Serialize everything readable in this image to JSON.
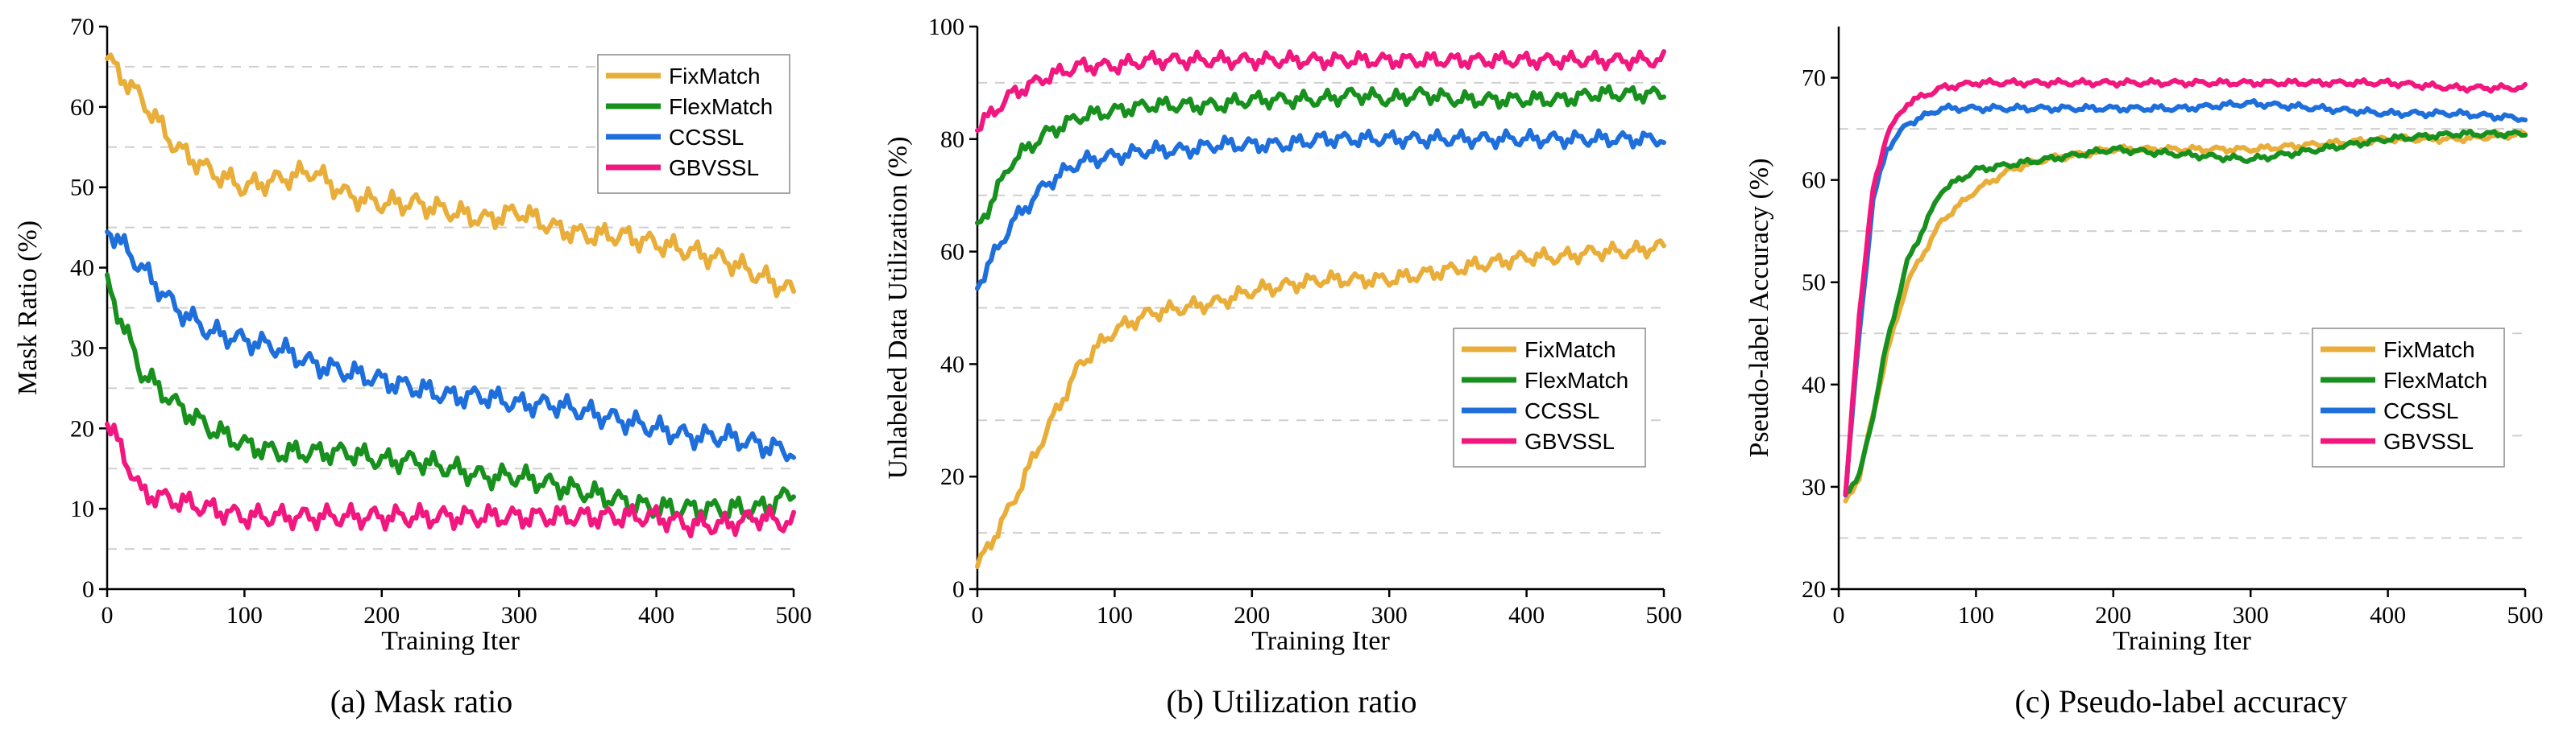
{
  "colors": {
    "FixMatch": "#E9AE3A",
    "FlexMatch": "#17901E",
    "CCSSL": "#1E6FDC",
    "GBVSSL": "#F2177F"
  },
  "chart_data": [
    {
      "type": "line",
      "caption": "(a) Mask ratio",
      "xlabel": "Training Iter",
      "ylabel": "Mask Ratio (%)",
      "xlim": [
        0,
        500
      ],
      "ylim": [
        0,
        70
      ],
      "xticks": [
        0,
        100,
        200,
        300,
        400,
        500
      ],
      "yticks": [
        0,
        10,
        20,
        30,
        40,
        50,
        60,
        70
      ],
      "grid_y": [
        5,
        15,
        25,
        35,
        45,
        55,
        65
      ],
      "legend_position": "top-right",
      "x": [
        0,
        25,
        50,
        75,
        100,
        125,
        150,
        175,
        200,
        225,
        250,
        275,
        300,
        325,
        350,
        375,
        400,
        425,
        450,
        475,
        500
      ],
      "series": [
        {
          "name": "FixMatch",
          "values": [
            66,
            61,
            55,
            52,
            50,
            51,
            52,
            49,
            48,
            48,
            47,
            46,
            47,
            45,
            44,
            44,
            43,
            42,
            41,
            39,
            37
          ]
        },
        {
          "name": "FlexMatch",
          "values": [
            38,
            27,
            23,
            20,
            18,
            17,
            17,
            17,
            16,
            16,
            15,
            14,
            14,
            13,
            12,
            11,
            10,
            10,
            10,
            10,
            12
          ]
        },
        {
          "name": "CCSSL",
          "values": [
            45,
            40,
            35,
            32,
            31,
            30,
            28,
            27,
            26,
            25,
            24,
            24,
            23,
            23,
            22,
            21,
            20,
            19,
            19,
            18,
            17
          ]
        },
        {
          "name": "GBVSSL",
          "values": [
            21,
            12,
            11,
            10,
            9,
            9,
            9,
            9,
            9,
            9,
            9,
            9,
            9,
            9,
            9,
            9,
            9,
            8,
            8,
            9,
            8
          ]
        }
      ]
    },
    {
      "type": "line",
      "caption": "(b) Utilization ratio",
      "xlabel": "Training Iter",
      "ylabel": "Unlabeled Data Utilization (%)",
      "xlim": [
        0,
        500
      ],
      "ylim": [
        0,
        100
      ],
      "xticks": [
        0,
        100,
        200,
        300,
        400,
        500
      ],
      "yticks": [
        0,
        20,
        40,
        60,
        80,
        100
      ],
      "grid_y": [
        10,
        30,
        50,
        70,
        90
      ],
      "legend_position": "center-right",
      "x": [
        0,
        25,
        50,
        75,
        100,
        125,
        150,
        175,
        200,
        225,
        250,
        275,
        300,
        325,
        350,
        375,
        400,
        425,
        450,
        475,
        500
      ],
      "series": [
        {
          "name": "FixMatch",
          "values": [
            4,
            15,
            28,
            40,
            46,
            49,
            50,
            51,
            53,
            54,
            55,
            55,
            55,
            56,
            57,
            58,
            59,
            59,
            60,
            60,
            61
          ]
        },
        {
          "name": "FlexMatch",
          "values": [
            64,
            76,
            81,
            84,
            85,
            86,
            86,
            86,
            87,
            87,
            87,
            88,
            87,
            88,
            87,
            87,
            87,
            87,
            88,
            88,
            88
          ]
        },
        {
          "name": "CCSSL",
          "values": [
            54,
            65,
            72,
            76,
            77,
            78,
            78,
            79,
            79,
            79,
            80,
            80,
            80,
            80,
            80,
            80,
            80,
            80,
            80,
            80,
            80
          ]
        },
        {
          "name": "GBVSSL",
          "values": [
            82,
            88,
            91,
            93,
            93,
            94,
            94,
            94,
            94,
            94,
            94,
            94,
            94,
            94,
            94,
            94,
            94,
            94,
            94,
            94,
            94
          ]
        }
      ]
    },
    {
      "type": "line",
      "caption": "(c) Pseudo-label accuracy",
      "xlabel": "Training Iter",
      "ylabel": "Pseudo-label Accuracy (%)",
      "xlim": [
        0,
        500
      ],
      "ylim": [
        20,
        75
      ],
      "xticks": [
        0,
        100,
        200,
        300,
        400,
        500
      ],
      "yticks": [
        20,
        30,
        40,
        50,
        60,
        70
      ],
      "grid_y": [
        25,
        35,
        45,
        55,
        65
      ],
      "legend_position": "center-right",
      "x": [
        5,
        15,
        25,
        35,
        50,
        75,
        100,
        125,
        150,
        200,
        250,
        300,
        350,
        400,
        450,
        500
      ],
      "series": [
        {
          "name": "FixMatch",
          "values": [
            28.5,
            31,
            37,
            43,
            50,
            56,
            59,
            61,
            62,
            63,
            63,
            63,
            63.5,
            64,
            64,
            64.5
          ]
        },
        {
          "name": "FlexMatch",
          "values": [
            29.5,
            31,
            37,
            44,
            52,
            59,
            61,
            61.5,
            62,
            63,
            62.5,
            62,
            63,
            64,
            64.5,
            64.5
          ]
        },
        {
          "name": "CCSSL",
          "values": [
            29.5,
            45,
            58,
            63,
            65.5,
            67,
            67,
            67,
            67,
            67,
            67,
            67.5,
            67,
            66.5,
            66.5,
            66
          ]
        },
        {
          "name": "GBVSSL",
          "values": [
            29,
            47,
            59,
            64.5,
            67.5,
            69,
            69.5,
            69.5,
            69.5,
            69.5,
            69.5,
            69.5,
            69.5,
            69.5,
            69,
            69
          ]
        }
      ]
    }
  ]
}
